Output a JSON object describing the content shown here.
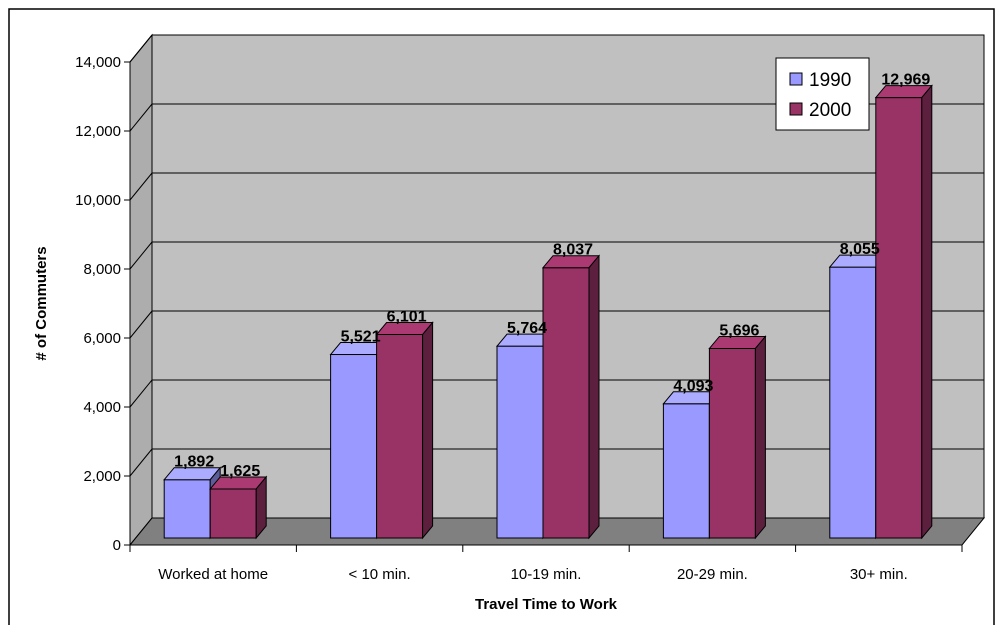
{
  "chart_data": {
    "type": "bar",
    "categories": [
      "Worked at home",
      "< 10 min.",
      "10-19 min.",
      "20-29 min.",
      "30+ min."
    ],
    "series": [
      {
        "name": "1990",
        "values": [
          1892,
          5521,
          5764,
          4093,
          8055
        ],
        "labels": [
          "1,892",
          "5,521",
          "5,764",
          "4,093",
          "8,055"
        ]
      },
      {
        "name": "2000",
        "values": [
          1625,
          6101,
          8037,
          5696,
          12969
        ],
        "labels": [
          "1,625",
          "6,101",
          "8,037",
          "5,696",
          "12,969"
        ]
      }
    ],
    "yticks": [
      "0",
      "2,000",
      "4,000",
      "6,000",
      "8,000",
      "10,000",
      "12,000",
      "14,000"
    ],
    "ylim": [
      0,
      14000
    ],
    "xlabel": "Travel Time to Work",
    "ylabel": "# of Commuters",
    "legend_position": "top-right",
    "grid": true,
    "style": "3d-clustered-column",
    "colors": {
      "series_1990": "#9999ff",
      "series_2000": "#993366",
      "plot_wall": "#c0c0c0",
      "floor": "#808080"
    }
  }
}
